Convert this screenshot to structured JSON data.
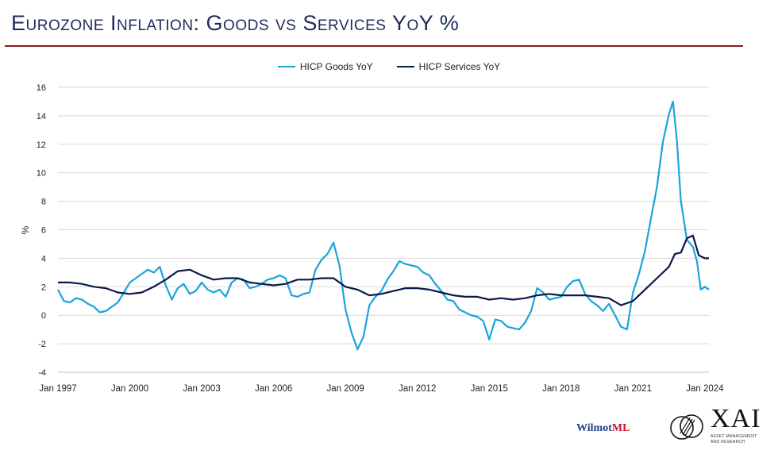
{
  "title": "Eurozone Inflation: Goods vs Services YoY %",
  "colors": {
    "goods": "#1aa3dd",
    "services": "#0b1a4a",
    "rule": "#8b1a1a",
    "grid": "#d9d9d9"
  },
  "brands": {
    "wilmot_prefix": "Wilmot",
    "wilmot_suffix": "ML",
    "xai": "XAI",
    "xai_sub_line1": "ASSET MANAGEMENT",
    "xai_sub_line2": "AND RESEARCH"
  },
  "chart_data": {
    "type": "line",
    "title": "Eurozone Inflation: Goods vs Services YoY %",
    "xlabel": "",
    "ylabel": "%",
    "ylim": [
      -4,
      16
    ],
    "yticks": [
      -4,
      -2,
      0,
      2,
      4,
      6,
      8,
      10,
      12,
      14,
      16
    ],
    "xlim": [
      1997,
      2024.17
    ],
    "xtick_values": [
      1997,
      2000,
      2003,
      2006,
      2009,
      2012,
      2015,
      2018,
      2021,
      2024
    ],
    "xtick_labels": [
      "Jan 1997",
      "Jan 2000",
      "Jan 2003",
      "Jan 2006",
      "Jan 2009",
      "Jan 2012",
      "Jan 2015",
      "Jan 2018",
      "Jan 2021",
      "Jan 2024"
    ],
    "legend": "top-center",
    "grid": true,
    "series": [
      {
        "name": "HICP Goods YoY",
        "x": [
          1997.0,
          1997.25,
          1997.5,
          1997.75,
          1998.0,
          1998.25,
          1998.5,
          1998.75,
          1999.0,
          1999.25,
          1999.5,
          1999.75,
          2000.0,
          2000.25,
          2000.5,
          2000.75,
          2001.0,
          2001.25,
          2001.5,
          2001.75,
          2002.0,
          2002.25,
          2002.5,
          2002.75,
          2003.0,
          2003.25,
          2003.5,
          2003.75,
          2004.0,
          2004.25,
          2004.5,
          2004.75,
          2005.0,
          2005.25,
          2005.5,
          2005.75,
          2006.0,
          2006.25,
          2006.5,
          2006.75,
          2007.0,
          2007.25,
          2007.5,
          2007.75,
          2008.0,
          2008.25,
          2008.5,
          2008.75,
          2009.0,
          2009.25,
          2009.5,
          2009.75,
          2010.0,
          2010.25,
          2010.5,
          2010.75,
          2011.0,
          2011.25,
          2011.5,
          2011.75,
          2012.0,
          2012.25,
          2012.5,
          2012.75,
          2013.0,
          2013.25,
          2013.5,
          2013.75,
          2014.0,
          2014.25,
          2014.5,
          2014.75,
          2015.0,
          2015.25,
          2015.5,
          2015.75,
          2016.0,
          2016.25,
          2016.5,
          2016.75,
          2017.0,
          2017.25,
          2017.5,
          2017.75,
          2018.0,
          2018.25,
          2018.5,
          2018.75,
          2019.0,
          2019.25,
          2019.5,
          2019.75,
          2020.0,
          2020.25,
          2020.5,
          2020.75,
          2021.0,
          2021.25,
          2021.5,
          2021.75,
          2022.0,
          2022.25,
          2022.5,
          2022.67,
          2022.83,
          2023.0,
          2023.25,
          2023.5,
          2023.67,
          2023.83,
          2024.0,
          2024.17
        ],
        "values": [
          1.8,
          1.0,
          0.9,
          1.2,
          1.1,
          0.8,
          0.6,
          0.2,
          0.3,
          0.6,
          0.9,
          1.6,
          2.3,
          2.6,
          2.9,
          3.2,
          3.0,
          3.4,
          2.1,
          1.1,
          1.9,
          2.2,
          1.5,
          1.7,
          2.3,
          1.8,
          1.6,
          1.8,
          1.3,
          2.3,
          2.6,
          2.5,
          1.9,
          2.0,
          2.2,
          2.5,
          2.6,
          2.8,
          2.6,
          1.4,
          1.3,
          1.5,
          1.6,
          3.2,
          3.9,
          4.3,
          5.1,
          3.5,
          0.4,
          -1.2,
          -2.4,
          -1.5,
          0.7,
          1.3,
          1.7,
          2.5,
          3.1,
          3.8,
          3.6,
          3.5,
          3.4,
          3.0,
          2.8,
          2.2,
          1.7,
          1.1,
          1.0,
          0.4,
          0.2,
          0.0,
          -0.1,
          -0.4,
          -1.7,
          -0.3,
          -0.4,
          -0.8,
          -0.9,
          -1.0,
          -0.5,
          0.3,
          1.9,
          1.6,
          1.1,
          1.2,
          1.3,
          2.0,
          2.4,
          2.5,
          1.5,
          1.0,
          0.7,
          0.3,
          0.8,
          0.0,
          -0.8,
          -1.0,
          1.6,
          2.9,
          4.5,
          6.8,
          9.0,
          12.2,
          14.1,
          15.0,
          12.3,
          8.0,
          5.3,
          4.8,
          3.8,
          1.8,
          2.0,
          1.8
        ]
      },
      {
        "name": "HICP Services YoY",
        "x": [
          1997.0,
          1997.5,
          1998.0,
          1998.5,
          1999.0,
          1999.5,
          2000.0,
          2000.5,
          2001.0,
          2001.5,
          2002.0,
          2002.5,
          2003.0,
          2003.5,
          2004.0,
          2004.5,
          2005.0,
          2005.5,
          2006.0,
          2006.5,
          2007.0,
          2007.5,
          2008.0,
          2008.5,
          2009.0,
          2009.5,
          2010.0,
          2010.5,
          2011.0,
          2011.5,
          2012.0,
          2012.5,
          2013.0,
          2013.5,
          2014.0,
          2014.5,
          2015.0,
          2015.5,
          2016.0,
          2016.5,
          2017.0,
          2017.5,
          2018.0,
          2018.5,
          2019.0,
          2019.5,
          2020.0,
          2020.5,
          2021.0,
          2021.5,
          2022.0,
          2022.5,
          2022.75,
          2023.0,
          2023.25,
          2023.5,
          2023.75,
          2024.0,
          2024.17
        ],
        "values": [
          2.3,
          2.3,
          2.2,
          2.0,
          1.9,
          1.6,
          1.5,
          1.6,
          2.0,
          2.5,
          3.1,
          3.2,
          2.8,
          2.5,
          2.6,
          2.6,
          2.3,
          2.2,
          2.1,
          2.2,
          2.5,
          2.5,
          2.6,
          2.6,
          2.0,
          1.8,
          1.4,
          1.5,
          1.7,
          1.9,
          1.9,
          1.8,
          1.6,
          1.4,
          1.3,
          1.3,
          1.1,
          1.2,
          1.1,
          1.2,
          1.4,
          1.5,
          1.4,
          1.4,
          1.4,
          1.3,
          1.2,
          0.7,
          1.0,
          1.8,
          2.6,
          3.4,
          4.3,
          4.4,
          5.4,
          5.6,
          4.2,
          4.0,
          4.0
        ]
      }
    ]
  }
}
